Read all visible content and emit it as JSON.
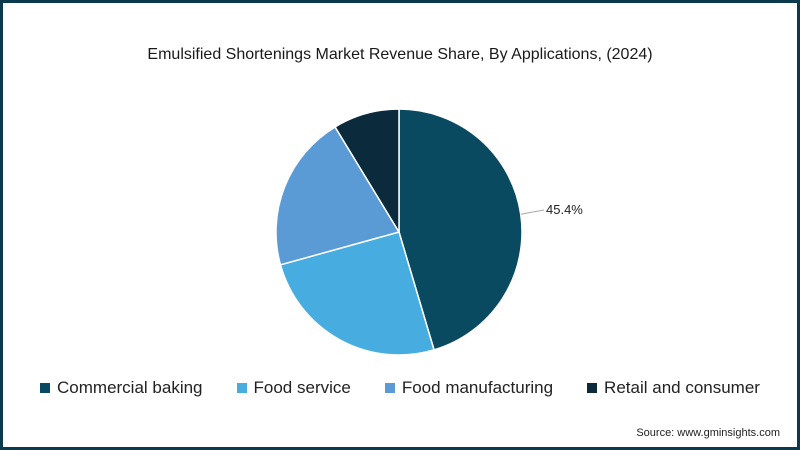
{
  "chart_data": {
    "type": "pie",
    "title": "Emulsified Shortenings Market Revenue Share, By Applications, (2024)",
    "categories": [
      "Commercial baking",
      "Food service",
      "Food manufacturing",
      "Retail and consumer"
    ],
    "values": [
      45.4,
      25.3,
      20.6,
      8.7
    ],
    "colors": [
      "#0a4a60",
      "#47ade0",
      "#5b9bd5",
      "#0b2a3c"
    ],
    "data_labels": [
      "45.4%"
    ],
    "legend_position": "bottom",
    "source": "Source: www.gminsights.com"
  }
}
